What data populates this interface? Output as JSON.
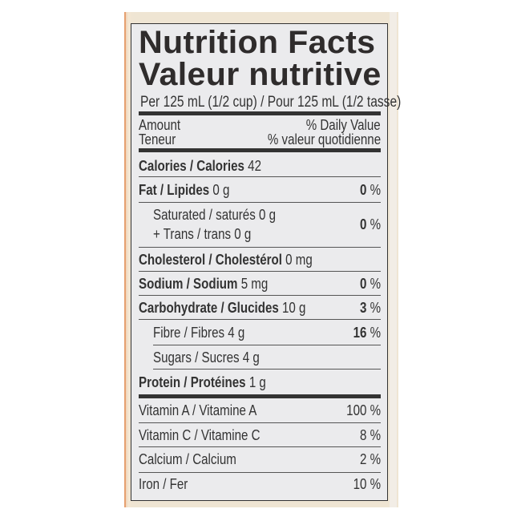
{
  "title_en": "Nutrition Facts",
  "title_fr": "Valeur nutritive",
  "serving": "Per 125 mL (1/2 cup) / Pour 125 mL (1/2 tasse)",
  "header": {
    "amount": "Amount",
    "teneur": "Teneur",
    "dv": "% Daily Value",
    "vq": "% valeur quotidienne"
  },
  "rows": [
    {
      "label": "Calories / Calories",
      "amount": "42",
      "dv": ""
    },
    {
      "label": "Fat / Lipides",
      "amount": "0 g",
      "dv": "0",
      "pct": "%"
    },
    {
      "label": "Saturated / saturés 0 g",
      "label2": "+ Trans / trans 0 g",
      "dv": "0",
      "pct": "%"
    },
    {
      "label": "Cholesterol / Cholestérol",
      "amount": "0 mg"
    },
    {
      "label": "Sodium / Sodium",
      "amount": "5 mg",
      "dv": "0",
      "pct": "%"
    },
    {
      "label": "Carbohydrate / Glucides",
      "amount": "10 g",
      "dv": "3",
      "pct": "%"
    },
    {
      "label": "Fibre / Fibres 4 g",
      "dv": "16",
      "pct": "%"
    },
    {
      "label": "Sugars / Sucres 4 g"
    },
    {
      "label": "Protein / Protéines",
      "amount": "1 g"
    }
  ],
  "vitamins": [
    {
      "label": "Vitamin A / Vitamine A",
      "dv": "100 %"
    },
    {
      "label": "Vitamin C / Vitamine C",
      "dv": "8 %"
    },
    {
      "label": "Calcium / Calcium",
      "dv": "2 %"
    },
    {
      "label": "Iron / Fer",
      "dv": "10 %"
    }
  ],
  "colors": {
    "label_bg": "#ebebed",
    "ink": "#333333",
    "package": "#efe5d3"
  }
}
